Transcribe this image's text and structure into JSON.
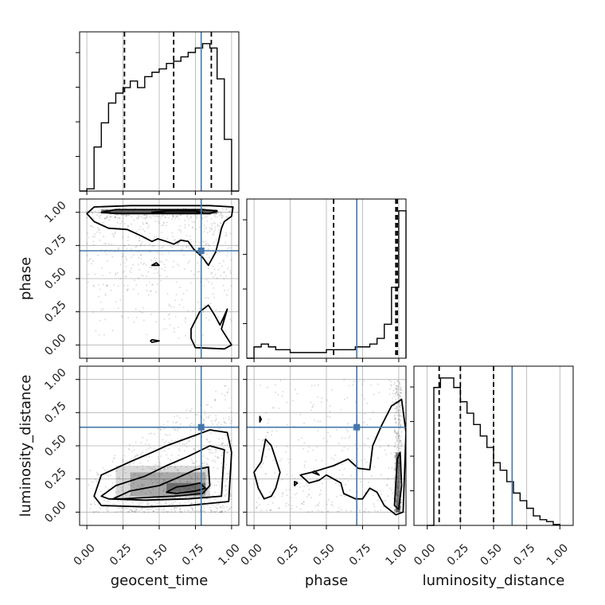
{
  "chart_data": {
    "type": "corner",
    "parameters": [
      "geocent_time",
      "phase",
      "luminosity_distance"
    ],
    "ticks": [
      0.0,
      0.25,
      0.5,
      0.75,
      1.0
    ],
    "tick_labels": [
      "0.00",
      "0.25",
      "0.50",
      "0.75",
      "1.00"
    ],
    "axis_labels": {
      "bottom": [
        "geocent_time",
        "phase",
        "luminosity_distance"
      ],
      "left": [
        "phase",
        "luminosity_distance"
      ]
    },
    "grid": true,
    "colors": {
      "truth": "#4477aa",
      "contour": "#000000",
      "hist": "#000000",
      "grid": "#b0b0b0"
    },
    "truths": {
      "geocent_time": 0.79,
      "phase": 0.71,
      "luminosity_distance": 0.64
    },
    "quantiles": {
      "geocent_time": [
        0.26,
        0.6,
        0.86
      ],
      "phase": [
        0.55,
        0.98,
        0.99
      ],
      "luminosity_distance": [
        0.09,
        0.25,
        0.5
      ]
    },
    "histograms": [
      {
        "param": "geocent_time",
        "xlim": [
          -0.05,
          1.05
        ],
        "bin_edges": [
          -0.05,
          0.0,
          0.05,
          0.1,
          0.15,
          0.2,
          0.25,
          0.3,
          0.35,
          0.4,
          0.45,
          0.5,
          0.55,
          0.6,
          0.65,
          0.7,
          0.75,
          0.8,
          0.85,
          0.9,
          0.95,
          1.0,
          1.05
        ],
        "counts": [
          0,
          2,
          40,
          62,
          80,
          89,
          94,
          100,
          94,
          104,
          108,
          111,
          116,
          118,
          122,
          126,
          130,
          134,
          130,
          102,
          47,
          0
        ]
      },
      {
        "param": "phase",
        "xlim": [
          -0.05,
          1.05
        ],
        "bin_edges": [
          -0.05,
          0.0,
          0.05,
          0.1,
          0.15,
          0.2,
          0.25,
          0.3,
          0.35,
          0.4,
          0.45,
          0.5,
          0.55,
          0.6,
          0.65,
          0.7,
          0.75,
          0.8,
          0.85,
          0.9,
          0.95,
          1.0,
          1.05
        ],
        "counts": [
          0,
          4,
          5,
          4,
          3,
          3,
          2,
          2,
          2,
          2,
          2,
          3,
          3,
          3,
          3,
          4,
          4,
          5,
          7,
          12,
          25,
          52
        ]
      },
      {
        "param": "luminosity_distance",
        "xlim": [
          -0.1,
          1.1
        ],
        "bin_edges": [
          0.0,
          0.05,
          0.1,
          0.15,
          0.2,
          0.25,
          0.3,
          0.35,
          0.4,
          0.45,
          0.5,
          0.55,
          0.6,
          0.65,
          0.7,
          0.75,
          0.8,
          0.85,
          0.9,
          0.95,
          1.0
        ],
        "counts": [
          0,
          145,
          155,
          155,
          145,
          130,
          118,
          106,
          94,
          82,
          66,
          58,
          46,
          34,
          26,
          18,
          10,
          6,
          4,
          1
        ]
      }
    ],
    "panels_2d": [
      {
        "x": "geocent_time",
        "y": "phase",
        "xlim": [
          -0.05,
          1.05
        ],
        "ylim": [
          -0.1,
          1.1
        ],
        "density_band": {
          "y0": 0.99,
          "y1": 1.02
        },
        "contours": [
          [
            [
              0.0,
              0.99
            ],
            [
              0.05,
              1.04
            ],
            [
              0.3,
              1.05
            ],
            [
              0.6,
              1.05
            ],
            [
              0.85,
              1.05
            ],
            [
              1.01,
              1.04
            ],
            [
              1.0,
              0.97
            ],
            [
              0.95,
              0.93
            ],
            [
              0.93,
              0.88
            ],
            [
              0.91,
              0.78
            ],
            [
              0.89,
              0.7
            ],
            [
              0.84,
              0.6
            ],
            [
              0.8,
              0.66
            ],
            [
              0.74,
              0.72
            ],
            [
              0.7,
              0.78
            ],
            [
              0.65,
              0.79
            ],
            [
              0.6,
              0.76
            ],
            [
              0.55,
              0.78
            ],
            [
              0.49,
              0.8
            ],
            [
              0.45,
              0.78
            ],
            [
              0.38,
              0.82
            ],
            [
              0.28,
              0.87
            ],
            [
              0.15,
              0.88
            ],
            [
              0.05,
              0.93
            ],
            [
              0.0,
              0.99
            ]
          ],
          [
            [
              0.1,
              1.0
            ],
            [
              0.2,
              1.02
            ],
            [
              0.5,
              1.02
            ],
            [
              0.8,
              1.02
            ],
            [
              0.9,
              1.01
            ],
            [
              0.85,
              0.99
            ],
            [
              0.5,
              0.99
            ],
            [
              0.2,
              0.99
            ],
            [
              0.1,
              1.0
            ]
          ],
          [
            [
              0.45,
              1.0
            ],
            [
              0.55,
              1.01
            ],
            [
              0.75,
              1.01
            ],
            [
              0.8,
              1.0
            ],
            [
              0.75,
              0.995
            ],
            [
              0.55,
              0.995
            ],
            [
              0.45,
              1.0
            ]
          ],
          [
            [
              0.72,
              0.12
            ],
            [
              0.78,
              0.25
            ],
            [
              0.84,
              0.3
            ],
            [
              0.88,
              0.23
            ],
            [
              0.92,
              0.15
            ],
            [
              0.95,
              0.22
            ],
            [
              0.97,
              0.27
            ],
            [
              0.93,
              0.12
            ],
            [
              1.0,
              0.0
            ],
            [
              0.95,
              -0.03
            ],
            [
              0.75,
              -0.02
            ],
            [
              0.72,
              0.05
            ],
            [
              0.72,
              0.12
            ]
          ],
          [
            [
              0.45,
              0.6
            ],
            [
              0.5,
              0.6
            ],
            [
              0.48,
              0.62
            ],
            [
              0.45,
              0.6
            ]
          ],
          [
            [
              0.45,
              0.02
            ],
            [
              0.5,
              0.03
            ],
            [
              0.45,
              0.04
            ],
            [
              0.44,
              0.03
            ],
            [
              0.45,
              0.02
            ]
          ]
        ]
      },
      {
        "x": "geocent_time",
        "y": "luminosity_distance",
        "xlim": [
          -0.05,
          1.05
        ],
        "ylim": [
          -0.1,
          1.1
        ],
        "density_band": null,
        "contours": [
          [
            [
              0.05,
              0.12
            ],
            [
              0.1,
              0.28
            ],
            [
              0.3,
              0.38
            ],
            [
              0.45,
              0.45
            ],
            [
              0.55,
              0.5
            ],
            [
              0.7,
              0.56
            ],
            [
              0.85,
              0.62
            ],
            [
              0.97,
              0.6
            ],
            [
              1.0,
              0.45
            ],
            [
              0.98,
              0.08
            ],
            [
              0.7,
              0.05
            ],
            [
              0.4,
              0.04
            ],
            [
              0.1,
              0.05
            ],
            [
              0.05,
              0.12
            ]
          ],
          [
            [
              0.1,
              0.12
            ],
            [
              0.2,
              0.2
            ],
            [
              0.4,
              0.27
            ],
            [
              0.55,
              0.35
            ],
            [
              0.7,
              0.42
            ],
            [
              0.85,
              0.5
            ],
            [
              0.95,
              0.47
            ],
            [
              0.93,
              0.12
            ],
            [
              0.7,
              0.1
            ],
            [
              0.4,
              0.09
            ],
            [
              0.15,
              0.1
            ],
            [
              0.1,
              0.12
            ]
          ],
          [
            [
              0.18,
              0.1
            ],
            [
              0.3,
              0.16
            ],
            [
              0.5,
              0.2
            ],
            [
              0.65,
              0.27
            ],
            [
              0.75,
              0.32
            ],
            [
              0.84,
              0.34
            ],
            [
              0.85,
              0.2
            ],
            [
              0.8,
              0.14
            ],
            [
              0.6,
              0.12
            ],
            [
              0.4,
              0.11
            ],
            [
              0.25,
              0.1
            ],
            [
              0.18,
              0.1
            ]
          ],
          [
            [
              0.55,
              0.15
            ],
            [
              0.62,
              0.19
            ],
            [
              0.7,
              0.2
            ],
            [
              0.78,
              0.22
            ],
            [
              0.82,
              0.18
            ],
            [
              0.75,
              0.16
            ],
            [
              0.62,
              0.14
            ],
            [
              0.55,
              0.15
            ]
          ]
        ]
      },
      {
        "x": "phase",
        "y": "luminosity_distance",
        "xlim": [
          -0.05,
          1.05
        ],
        "ylim": [
          -0.1,
          1.1
        ],
        "density_band": {
          "x0": 0.98,
          "x1": 1.01
        },
        "contours": [
          [
            [
              0.0,
              0.3
            ],
            [
              0.05,
              0.38
            ],
            [
              0.08,
              0.55
            ],
            [
              0.12,
              0.5
            ],
            [
              0.15,
              0.4
            ],
            [
              0.18,
              0.3
            ],
            [
              0.15,
              0.18
            ],
            [
              0.12,
              0.12
            ],
            [
              0.07,
              0.1
            ],
            [
              0.03,
              0.18
            ],
            [
              0.0,
              0.3
            ]
          ],
          [
            [
              0.04,
              0.72
            ],
            [
              0.05,
              0.7
            ],
            [
              0.04,
              0.68
            ],
            [
              0.04,
              0.72
            ]
          ],
          [
            [
              0.32,
              0.28
            ],
            [
              0.4,
              0.3
            ],
            [
              0.55,
              0.35
            ],
            [
              0.65,
              0.4
            ],
            [
              0.72,
              0.33
            ],
            [
              0.8,
              0.32
            ],
            [
              0.82,
              0.5
            ],
            [
              0.88,
              0.65
            ],
            [
              0.95,
              0.8
            ],
            [
              1.02,
              0.85
            ],
            [
              1.05,
              0.6
            ],
            [
              1.03,
              0.0
            ],
            [
              0.98,
              -0.02
            ],
            [
              0.9,
              0.05
            ],
            [
              0.85,
              0.15
            ],
            [
              0.8,
              0.18
            ],
            [
              0.75,
              0.1
            ],
            [
              0.7,
              0.1
            ],
            [
              0.62,
              0.14
            ],
            [
              0.6,
              0.22
            ],
            [
              0.5,
              0.28
            ],
            [
              0.45,
              0.24
            ],
            [
              0.38,
              0.22
            ],
            [
              0.32,
              0.28
            ]
          ],
          [
            [
              0.97,
              0.05
            ],
            [
              0.99,
              0.4
            ],
            [
              1.01,
              0.45
            ],
            [
              1.02,
              0.2
            ],
            [
              1.0,
              0.02
            ],
            [
              0.97,
              0.05
            ]
          ],
          [
            [
              0.28,
              0.2
            ],
            [
              0.3,
              0.22
            ],
            [
              0.28,
              0.23
            ],
            [
              0.28,
              0.2
            ]
          ],
          [
            [
              0.4,
              0.3
            ],
            [
              0.45,
              0.28
            ],
            [
              0.42,
              0.31
            ],
            [
              0.4,
              0.3
            ]
          ]
        ]
      }
    ]
  }
}
